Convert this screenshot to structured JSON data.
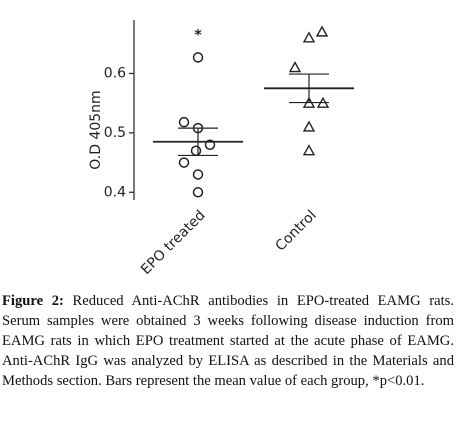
{
  "chart_data": {
    "type": "dot",
    "y_label": "O.D 405nm",
    "categories": [
      "EPO treated",
      "Control"
    ],
    "markers": [
      "circle",
      "triangle"
    ],
    "values": [
      [
        0.627,
        0.518,
        0.508,
        0.48,
        0.47,
        0.45,
        0.43,
        0.4
      ],
      [
        0.66,
        0.67,
        0.61,
        0.55,
        0.55,
        0.51,
        0.47
      ]
    ],
    "means": [
      0.485,
      0.575
    ],
    "errors": [
      0.023,
      0.024
    ],
    "annotation": "*",
    "ylim": [
      0.387,
      0.69
    ],
    "yticks": [
      0.4,
      0.5,
      0.6
    ]
  },
  "caption": {
    "label": "Figure 2:",
    "text": "Reduced Anti-AChR antibodies in EPO-treated EAMG rats. Serum samples were obtained 3 weeks following disease induction from EAMG rats in which EPO treatment started at the acute phase of EAMG. Anti-AChR IgG was analyzed by ELISA as described in the Materials and Methods section. Bars represent the mean value of each group, *p<0.01."
  }
}
